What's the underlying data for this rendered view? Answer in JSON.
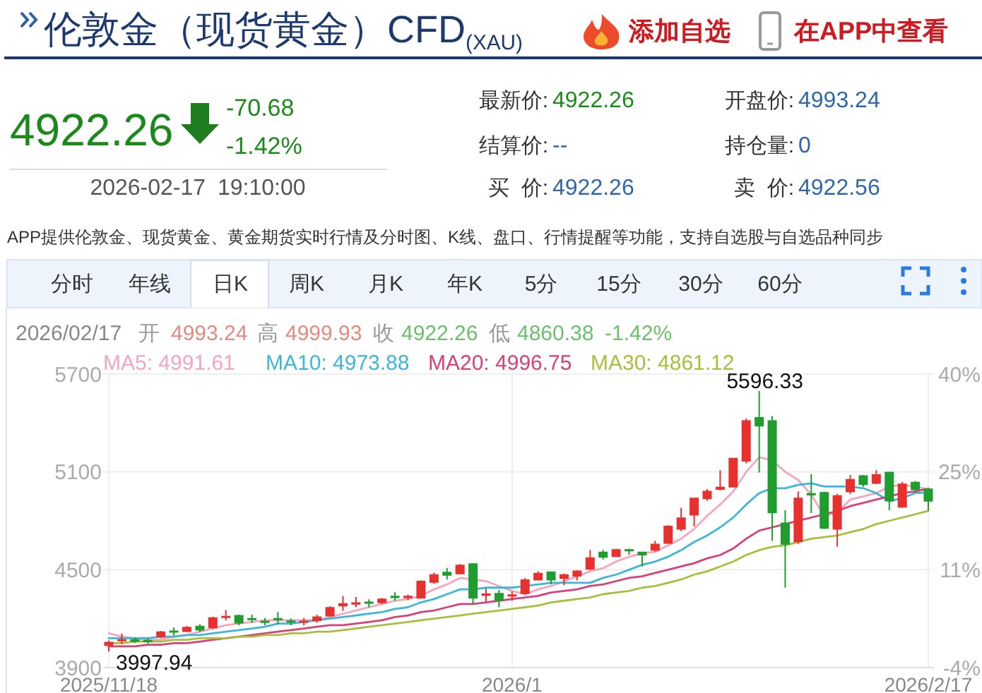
{
  "chart_data": {
    "type": "candlestick",
    "title": "伦敦金（现货黄金）CFD$_{(XAU)}$",
    "categories": [
      "2025/11/18",
      null,
      null,
      null,
      null,
      null,
      null,
      null,
      null,
      null,
      null,
      null,
      null,
      null,
      null,
      null,
      null,
      null,
      null,
      null,
      null,
      null,
      null,
      null,
      null,
      null,
      null,
      null,
      null,
      null,
      null,
      "2026/1",
      null,
      null,
      null,
      null,
      null,
      null,
      null,
      null,
      null,
      null,
      null,
      null,
      null,
      null,
      null,
      null,
      null,
      null,
      null,
      null,
      null,
      null,
      null,
      null,
      null,
      null,
      null,
      null,
      null,
      null,
      null,
      "2026/2/17"
    ],
    "ohlc": [
      [
        4037,
        4065,
        3997.94,
        4054
      ],
      [
        4065,
        4109,
        4045,
        4070
      ],
      [
        4070,
        4085,
        4050,
        4062
      ],
      [
        4065,
        4080,
        4045,
        4060
      ],
      [
        4089,
        4125,
        4080,
        4117
      ],
      [
        4123,
        4146,
        4097,
        4120
      ],
      [
        4123,
        4155,
        4117,
        4146
      ],
      [
        4152,
        4166,
        4117,
        4132
      ],
      [
        4146,
        4213,
        4137,
        4204
      ],
      [
        4210,
        4253,
        4189,
        4213
      ],
      [
        4218,
        4224,
        4160,
        4175
      ],
      [
        4200,
        4224,
        4175,
        4195
      ],
      [
        4182,
        4204,
        4160,
        4180
      ],
      [
        4200,
        4241,
        4166,
        4195
      ],
      [
        4185,
        4201,
        4160,
        4183
      ],
      [
        4180,
        4204,
        4160,
        4183
      ],
      [
        4189,
        4224,
        4175,
        4209
      ],
      [
        4218,
        4276,
        4212,
        4267
      ],
      [
        4280,
        4339,
        4247,
        4290
      ],
      [
        4290,
        4333,
        4270,
        4296
      ],
      [
        4300,
        4319,
        4270,
        4296
      ],
      [
        4299,
        4327,
        4290,
        4319
      ],
      [
        4336,
        4362,
        4310,
        4330
      ],
      [
        4330,
        4348,
        4313,
        4336
      ],
      [
        4327,
        4434,
        4324,
        4428
      ],
      [
        4425,
        4483,
        4414,
        4468
      ],
      [
        4483,
        4511,
        4440,
        4468
      ],
      [
        4477,
        4535,
        4471,
        4526
      ],
      [
        4535,
        4540,
        4290,
        4327
      ],
      [
        4345,
        4385,
        4305,
        4350
      ],
      [
        4353,
        4376,
        4270,
        4313
      ],
      [
        4340,
        4368,
        4310,
        4345
      ],
      [
        4355,
        4448,
        4347,
        4436
      ],
      [
        4439,
        4491,
        4434,
        4477
      ],
      [
        4485,
        4490,
        4411,
        4439
      ],
      [
        4448,
        4477,
        4405,
        4468
      ],
      [
        4462,
        4497,
        4434,
        4491
      ],
      [
        4506,
        4621,
        4497,
        4572
      ],
      [
        4606,
        4621,
        4563,
        4578
      ],
      [
        4583,
        4629,
        4578,
        4621
      ],
      [
        4621,
        4629,
        4592,
        4618
      ],
      [
        4606,
        4610,
        4520,
        4592
      ],
      [
        4621,
        4678,
        4612,
        4655
      ],
      [
        4664,
        4773,
        4658,
        4765
      ],
      [
        4750,
        4880,
        4736,
        4816
      ],
      [
        4837,
        4937,
        4765,
        4937
      ],
      [
        4937,
        4995,
        4923,
        4980
      ],
      [
        4995,
        5110,
        4986,
        5004
      ],
      [
        5009,
        5182,
        5009,
        5182
      ],
      [
        5168,
        5427,
        5153,
        5412
      ],
      [
        5432,
        5596.33,
        5096,
        5383
      ],
      [
        5412,
        5441,
        4678,
        4851
      ],
      [
        4785,
        4865,
        4390,
        4658
      ],
      [
        4673,
        4980,
        4658,
        4937
      ],
      [
        4966,
        5087,
        4848,
        4960
      ],
      [
        4972,
        4980,
        4750,
        4756
      ],
      [
        4750,
        4966,
        4641,
        4952
      ],
      [
        4980,
        5081,
        4966,
        5052
      ],
      [
        5075,
        5081,
        5009,
        5024
      ],
      [
        5032,
        5110,
        5024,
        5081
      ],
      [
        5096,
        5096,
        4865,
        4923
      ],
      [
        4885,
        5038,
        4880,
        5024
      ],
      [
        5035,
        5044,
        4985,
        4992.94
      ],
      [
        4993.24,
        4999.93,
        4860.38,
        4922.26
      ]
    ],
    "colors": [
      "#e8312f",
      "#e8312f",
      "#1f9d2f",
      "#1f9d2f",
      "#e8312f",
      "#1f9d2f",
      "#e8312f",
      "#1f9d2f",
      "#e8312f",
      "#e8312f",
      "#1f9d2f",
      "#1f9d2f",
      "#1f9d2f",
      "#1f9d2f",
      "#1f9d2f",
      "#e8312f",
      "#e8312f",
      "#e8312f",
      "#e8312f",
      "#e8312f",
      "#1f9d2f",
      "#e8312f",
      "#1f9d2f",
      "#e8312f",
      "#e8312f",
      "#e8312f",
      "#1f9d2f",
      "#e8312f",
      "#1f9d2f",
      "#e8312f",
      "#1f9d2f",
      "#e8312f",
      "#e8312f",
      "#e8312f",
      "#1f9d2f",
      "#e8312f",
      "#e8312f",
      "#e8312f",
      "#1f9d2f",
      "#e8312f",
      "#1f9d2f",
      "#1f9d2f",
      "#e8312f",
      "#e8312f",
      "#e8312f",
      "#e8312f",
      "#e8312f",
      "#e8312f",
      "#e8312f",
      "#e8312f",
      "#1f9d2f",
      "#1f9d2f",
      "#1f9d2f",
      "#e8312f",
      "#1f9d2f",
      "#1f9d2f",
      "#e8312f",
      "#e8312f",
      "#1f9d2f",
      "#e8312f",
      "#1f9d2f",
      "#e8312f",
      "#1f9d2f",
      "#1f9d2f"
    ],
    "series": [
      {
        "type": "line",
        "name": "MA5: 4991.61",
        "color": "#f4a6bd",
        "values": [
          4110,
          4090,
          4080,
          4070,
          4070,
          4090,
          4100,
          4120,
          4140,
          4160,
          4170,
          4180,
          4190,
          4190,
          4190,
          4190,
          4190,
          4210,
          4230,
          4250,
          4270,
          4290,
          4310,
          4320,
          4340,
          4380,
          4410,
          4450,
          4440,
          4430,
          4400,
          4370,
          4350,
          4380,
          4400,
          4430,
          4460,
          4490,
          4510,
          4550,
          4580,
          4600,
          4610,
          4650,
          4690,
          4750,
          4830,
          4900,
          4980,
          5100,
          5190,
          5170,
          5100,
          5050,
          4960,
          4830,
          4850,
          4930,
          4950,
          4970,
          5010,
          5020,
          5010,
          4991.61
        ]
      },
      {
        "type": "line",
        "name": "MA10: 4973.88",
        "color": "#3db7d9",
        "values": [
          4080,
          4080,
          4080,
          4080,
          4090,
          4090,
          4100,
          4100,
          4110,
          4120,
          4130,
          4140,
          4150,
          4170,
          4170,
          4180,
          4190,
          4200,
          4210,
          4220,
          4230,
          4240,
          4260,
          4270,
          4300,
          4320,
          4350,
          4380,
          4380,
          4390,
          4390,
          4390,
          4400,
          4410,
          4420,
          4420,
          4420,
          4420,
          4450,
          4470,
          4500,
          4530,
          4550,
          4580,
          4620,
          4670,
          4710,
          4760,
          4820,
          4900,
          4970,
          5000,
          5000,
          5020,
          5030,
          5010,
          5010,
          5010,
          5000,
          4970,
          4920,
          4940,
          4970,
          4973.88
        ]
      },
      {
        "type": "line",
        "name": "MA20: 4996.75",
        "color": "#d9407a",
        "values": [
          4030,
          4030,
          4030,
          4040,
          4040,
          4050,
          4050,
          4060,
          4070,
          4080,
          4090,
          4100,
          4110,
          4120,
          4130,
          4140,
          4150,
          4160,
          4160,
          4170,
          4180,
          4190,
          4210,
          4220,
          4240,
          4250,
          4270,
          4290,
          4290,
          4300,
          4310,
          4320,
          4330,
          4340,
          4360,
          4370,
          4380,
          4400,
          4410,
          4430,
          4450,
          4460,
          4480,
          4500,
          4520,
          4540,
          4570,
          4590,
          4630,
          4690,
          4740,
          4760,
          4780,
          4800,
          4820,
          4840,
          4860,
          4890,
          4910,
          4930,
          4950,
          4970,
          4980,
          4996.75
        ]
      },
      {
        "type": "line",
        "name": "MA30: 4861.12",
        "color": "#a9be3a",
        "values": [
          4050,
          4050,
          4060,
          4060,
          4060,
          4070,
          4070,
          4080,
          4080,
          4080,
          4090,
          4090,
          4100,
          4100,
          4110,
          4110,
          4120,
          4120,
          4130,
          4140,
          4150,
          4160,
          4170,
          4180,
          4190,
          4200,
          4210,
          4220,
          4230,
          4240,
          4250,
          4260,
          4270,
          4280,
          4300,
          4310,
          4320,
          4330,
          4350,
          4360,
          4370,
          4390,
          4400,
          4420,
          4440,
          4470,
          4490,
          4520,
          4550,
          4590,
          4620,
          4640,
          4650,
          4670,
          4690,
          4700,
          4710,
          4730,
          4750,
          4780,
          4800,
          4820,
          4840,
          4861.12
        ]
      }
    ],
    "ylim": [
      3900,
      5700
    ],
    "yticks": [
      3900,
      4500,
      5100,
      5700
    ],
    "y2lim": [
      -4.1,
      40.1
    ],
    "y2ticks": [
      {
        "value": -4.1,
        "label": "-4%"
      },
      {
        "value": 10.6,
        "label": "11%"
      },
      {
        "value": 25.4,
        "label": "25%"
      },
      {
        "value": 40.1,
        "label": "40%"
      }
    ],
    "grid": true,
    "legend": "top left",
    "annotations": [
      "4922.26",
      "-70.68",
      "-1.42%",
      "2026-02-17 19:10:00",
      "最新价:",
      "4922.26",
      "开盘价:",
      "4993.24",
      "结算价:",
      "--",
      "持仓量:",
      "0",
      "买 价:",
      "4922.26",
      "卖 价:",
      "4922.56",
      "添加自选",
      "在APP中查看",
      "APP提供伦敦金、现货黄金、黄金期货实时行情及分时图、K线、盘口、行情提醒等功能，支持自选股与自选品种同步",
      "分时",
      "年线",
      "日K",
      "周K",
      "月K",
      "年K",
      "5分",
      "15分",
      "30分",
      "60分",
      "2026/02/17",
      "开",
      "4993.24",
      "高",
      "4999.93",
      "收",
      "4922.26",
      "低",
      "4860.38",
      "-1.42%",
      {
        "text": "5596.33",
        "y": 5596.33
      },
      {
        "text": "3997.94",
        "y": 3997.94
      }
    ]
  }
}
